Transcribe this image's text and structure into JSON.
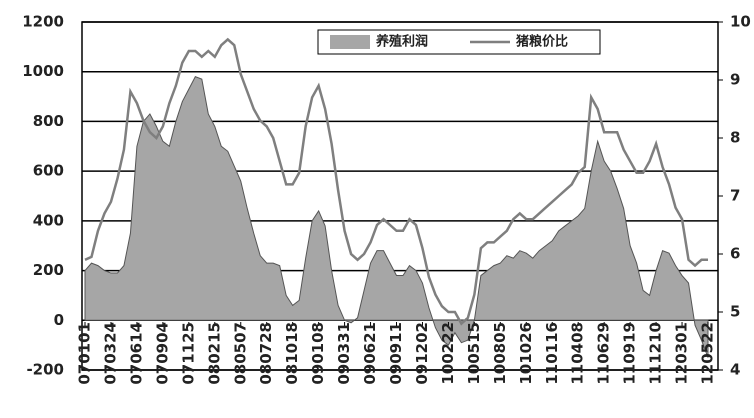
{
  "chart_data": {
    "type": "area-line",
    "categories": [
      "070101",
      null,
      null,
      null,
      "070324",
      null,
      null,
      null,
      "070614",
      null,
      null,
      null,
      "070904",
      null,
      null,
      null,
      "071125",
      null,
      null,
      null,
      "080215",
      null,
      null,
      null,
      "080507",
      null,
      null,
      null,
      "080728",
      null,
      null,
      null,
      "081018",
      null,
      null,
      null,
      "090108",
      null,
      null,
      null,
      "090331",
      null,
      null,
      null,
      "090621",
      null,
      null,
      null,
      "090911",
      null,
      null,
      null,
      "091202",
      null,
      null,
      null,
      "100222",
      null,
      null,
      null,
      "100515",
      null,
      null,
      null,
      "100805",
      null,
      null,
      null,
      "101026",
      null,
      null,
      null,
      "110116",
      null,
      null,
      null,
      "110408",
      null,
      null,
      null,
      "110629",
      null,
      null,
      null,
      "110919",
      null,
      null,
      null,
      "111210",
      null,
      null,
      null,
      "120301",
      null,
      null,
      null,
      "120522"
    ],
    "series": [
      {
        "name": "养殖利润",
        "color": "#a6a6a6",
        "axis": "y",
        "values": [
          200,
          230,
          220,
          200,
          190,
          190,
          220,
          350,
          700,
          800,
          830,
          780,
          720,
          700,
          800,
          880,
          930,
          980,
          970,
          830,
          780,
          700,
          680,
          620,
          560,
          450,
          350,
          260,
          230,
          230,
          220,
          100,
          60,
          80,
          250,
          400,
          440,
          380,
          200,
          60,
          0,
          -10,
          10,
          120,
          230,
          280,
          280,
          230,
          180,
          180,
          220,
          200,
          150,
          50,
          -30,
          -80,
          -100,
          -50,
          -90,
          -80,
          0,
          180,
          200,
          220,
          230,
          260,
          250,
          280,
          270,
          250,
          280,
          300,
          320,
          360,
          380,
          400,
          420,
          450,
          600,
          720,
          640,
          600,
          530,
          450,
          300,
          230,
          120,
          100,
          200,
          280,
          270,
          220,
          180,
          150,
          -20,
          -80,
          -150
        ]
      },
      {
        "name": "猪粮价比",
        "color": "#7f7f7f",
        "axis": "y2",
        "values": [
          5.9,
          5.95,
          6.4,
          6.7,
          6.9,
          7.3,
          7.8,
          8.8,
          8.6,
          8.3,
          8.1,
          8.0,
          8.2,
          8.6,
          8.9,
          9.3,
          9.5,
          9.5,
          9.4,
          9.5,
          9.4,
          9.6,
          9.7,
          9.6,
          9.1,
          8.8,
          8.5,
          8.3,
          8.2,
          8.0,
          7.6,
          7.2,
          7.2,
          7.4,
          8.2,
          8.7,
          8.9,
          8.5,
          7.9,
          7.1,
          6.4,
          6.0,
          5.9,
          6.0,
          6.2,
          6.5,
          6.6,
          6.5,
          6.4,
          6.4,
          6.6,
          6.5,
          6.1,
          5.6,
          5.3,
          5.1,
          5.0,
          5.0,
          4.8,
          4.9,
          5.3,
          6.1,
          6.2,
          6.2,
          6.3,
          6.4,
          6.6,
          6.7,
          6.6,
          6.6,
          6.7,
          6.8,
          6.9,
          7.0,
          7.1,
          7.2,
          7.4,
          7.5,
          8.7,
          8.5,
          8.1,
          8.1,
          8.1,
          7.8,
          7.6,
          7.4,
          7.4,
          7.6,
          7.9,
          7.5,
          7.2,
          6.8,
          6.6,
          5.9,
          5.8,
          5.9,
          5.9
        ]
      }
    ],
    "ylim": [
      -200,
      1200
    ],
    "yticks": [
      -200,
      0,
      200,
      400,
      600,
      800,
      1000,
      1200
    ],
    "y2lim": [
      4,
      10
    ],
    "y2ticks": [
      4,
      5,
      6,
      7,
      8,
      9,
      10
    ],
    "grid": true,
    "legend": "top"
  }
}
